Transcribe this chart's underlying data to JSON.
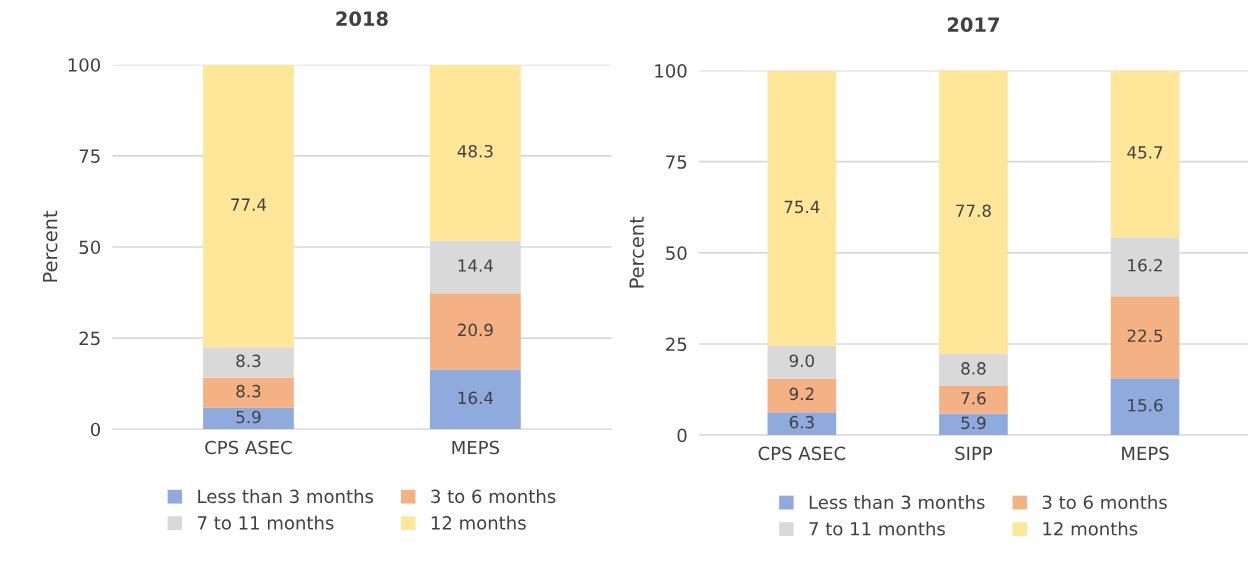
{
  "chart_data": [
    {
      "type": "bar",
      "title": "2018",
      "ylabel": "Percent",
      "categories": [
        "CPS ASEC",
        "MEPS"
      ],
      "stacked": true,
      "ylim": [
        0,
        100
      ],
      "yticks": [
        0,
        25,
        50,
        75,
        100
      ],
      "grid": "y",
      "legend": "bottom",
      "series": [
        {
          "name": "Less than 3 months",
          "color": "#8faadc",
          "values": [
            5.9,
            16.4
          ],
          "value_labels": [
            "5.9",
            "16.4"
          ]
        },
        {
          "name": "3 to 6 months",
          "color": "#f4b183",
          "values": [
            8.3,
            20.9
          ],
          "value_labels": [
            "8.3",
            "20.9"
          ]
        },
        {
          "name": "7 to 11 months",
          "color": "#d9d9d9",
          "values": [
            8.3,
            14.4
          ],
          "value_labels": [
            "8.3",
            "14.4"
          ]
        },
        {
          "name": "12 months",
          "color": "#ffe699",
          "values": [
            77.4,
            48.3
          ],
          "value_labels": [
            "77.4",
            "48.3"
          ]
        }
      ]
    },
    {
      "type": "bar",
      "title": "2017",
      "ylabel": "Percent",
      "categories": [
        "CPS ASEC",
        "SIPP",
        "MEPS"
      ],
      "stacked": true,
      "ylim": [
        0,
        100
      ],
      "yticks": [
        0,
        25,
        50,
        75,
        100
      ],
      "grid": "y",
      "legend": "bottom",
      "series": [
        {
          "name": "Less than 3 months",
          "color": "#8faadc",
          "values": [
            6.3,
            5.9,
            15.6
          ],
          "value_labels": [
            "6.3",
            "5.9",
            "15.6"
          ]
        },
        {
          "name": "3 to 6 months",
          "color": "#f4b183",
          "values": [
            9.2,
            7.6,
            22.5
          ],
          "value_labels": [
            "9.2",
            "7.6",
            "22.5"
          ]
        },
        {
          "name": "7 to 11 months",
          "color": "#d9d9d9",
          "values": [
            9.0,
            8.8,
            16.2
          ],
          "value_labels": [
            "9.0",
            "8.8",
            "16.2"
          ]
        },
        {
          "name": "12 months",
          "color": "#ffe699",
          "values": [
            75.4,
            77.8,
            45.7
          ],
          "value_labels": [
            "75.4",
            "77.8",
            "45.7"
          ]
        }
      ]
    }
  ]
}
